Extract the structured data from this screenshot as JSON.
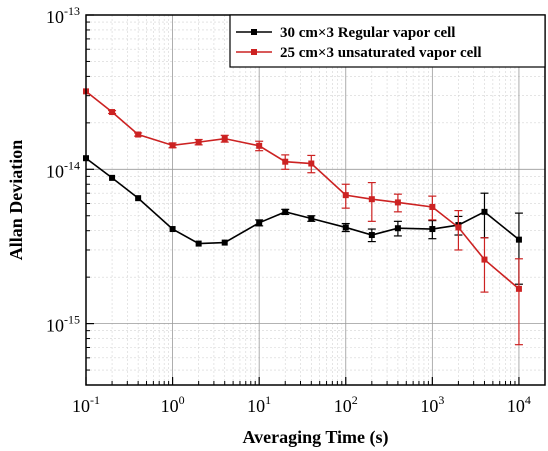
{
  "chart_data": {
    "type": "line",
    "xlabel": "Averaging Time (s)",
    "ylabel": "Allan Deviation",
    "xscale": "log",
    "yscale": "log",
    "xlim": [
      0.1,
      20000
    ],
    "ylim": [
      4e-16,
      1e-13
    ],
    "x_tick_labels": [
      {
        "value": 0.1,
        "base": "10",
        "exp": "-1"
      },
      {
        "value": 1,
        "base": "10",
        "exp": "0"
      },
      {
        "value": 10,
        "base": "10",
        "exp": "1"
      },
      {
        "value": 100,
        "base": "10",
        "exp": "2"
      },
      {
        "value": 1000,
        "base": "10",
        "exp": "3"
      },
      {
        "value": 10000,
        "base": "10",
        "exp": "4"
      }
    ],
    "y_tick_labels": [
      {
        "value": 1e-13,
        "base": "10",
        "exp": "-13"
      },
      {
        "value": 1e-14,
        "base": "10",
        "exp": "-14"
      },
      {
        "value": 1e-15,
        "base": "10",
        "exp": "-15"
      }
    ],
    "grid": true,
    "legend_position": "top-right",
    "series": [
      {
        "name": "30 cm×3 Regular vapor cell",
        "color": "#000000",
        "marker": "square",
        "points": [
          {
            "x": 0.1,
            "y": 1.18e-14,
            "err": 0
          },
          {
            "x": 0.2,
            "y": 8.8e-15,
            "err": 0
          },
          {
            "x": 0.4,
            "y": 6.5e-15,
            "err": 0
          },
          {
            "x": 1,
            "y": 4.1e-15,
            "err": 0
          },
          {
            "x": 2,
            "y": 3.3e-15,
            "err": 0
          },
          {
            "x": 4,
            "y": 3.35e-15,
            "err": 0
          },
          {
            "x": 10,
            "y": 4.5e-15,
            "err": 2e-16
          },
          {
            "x": 20,
            "y": 5.3e-15,
            "err": 2e-16
          },
          {
            "x": 40,
            "y": 4.8e-15,
            "err": 2e-16
          },
          {
            "x": 100,
            "y": 4.2e-15,
            "err": 2.5e-16
          },
          {
            "x": 200,
            "y": 3.75e-15,
            "err": 3.5e-16
          },
          {
            "x": 400,
            "y": 4.15e-15,
            "err": 4.5e-16
          },
          {
            "x": 1000,
            "y": 4.1e-15,
            "err": 5.5e-16
          },
          {
            "x": 2000,
            "y": 4.35e-15,
            "err": 6e-16
          },
          {
            "x": 4000,
            "y": 5.3e-15,
            "err": 1.7e-15
          },
          {
            "x": 10000,
            "y": 3.5e-15,
            "err": 1.7e-15
          }
        ]
      },
      {
        "name": "25 cm×3 unsaturated vapor cell",
        "color": "#cc2222",
        "marker": "square",
        "points": [
          {
            "x": 0.1,
            "y": 3.2e-14,
            "err": 0
          },
          {
            "x": 0.2,
            "y": 2.35e-14,
            "err": 5e-16
          },
          {
            "x": 0.4,
            "y": 1.68e-14,
            "err": 4e-16
          },
          {
            "x": 1,
            "y": 1.43e-14,
            "err": 5e-16
          },
          {
            "x": 2,
            "y": 1.5e-14,
            "err": 6e-16
          },
          {
            "x": 4,
            "y": 1.58e-14,
            "err": 8e-16
          },
          {
            "x": 10,
            "y": 1.42e-14,
            "err": 1e-15
          },
          {
            "x": 20,
            "y": 1.12e-14,
            "err": 1.2e-15
          },
          {
            "x": 40,
            "y": 1.09e-14,
            "err": 1.4e-15
          },
          {
            "x": 100,
            "y": 6.8e-15,
            "err": 1.2e-15
          },
          {
            "x": 200,
            "y": 6.4e-15,
            "err": 1.8e-15
          },
          {
            "x": 400,
            "y": 6.1e-15,
            "err": 8e-16
          },
          {
            "x": 1000,
            "y": 5.7e-15,
            "err": 1e-15
          },
          {
            "x": 2000,
            "y": 4.2e-15,
            "err": 1.2e-15
          },
          {
            "x": 4000,
            "y": 2.6e-15,
            "err": 1e-15
          },
          {
            "x": 10000,
            "y": 1.68e-15,
            "err": 9.5e-16
          }
        ]
      }
    ]
  }
}
